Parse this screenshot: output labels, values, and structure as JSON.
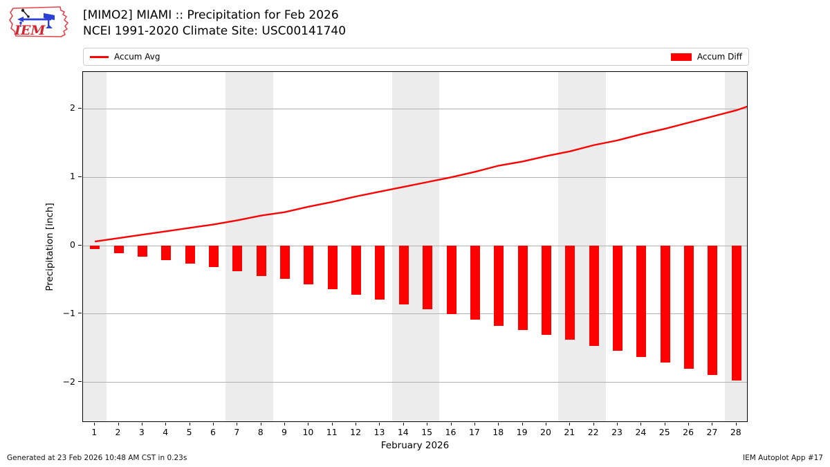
{
  "header": {
    "title_line1": "[MIMO2] MIAMI :: Precipitation for Feb 2026",
    "title_line2": "NCEI 1991-2020 Climate Site: USC00141740",
    "logo_text": "IEM"
  },
  "legend": {
    "items": [
      {
        "label": "Accum Avg",
        "type": "line",
        "color": "#ff0000"
      },
      {
        "label": "Accum Diff",
        "type": "bar",
        "color": "#ff0000"
      }
    ]
  },
  "footer": {
    "left": "Generated at 23 Feb 2026 10:48 AM CST in 0.23s",
    "right": "IEM Autoplot App #17"
  },
  "chart_data": {
    "type": "bar",
    "title": "[MIMO2] MIAMI :: Precipitation for Feb 2026",
    "subtitle": "NCEI 1991-2020 Climate Site: USC00141740",
    "xlabel": "February 2026",
    "ylabel": "Precipitation [inch]",
    "x": [
      1,
      2,
      3,
      4,
      5,
      6,
      7,
      8,
      9,
      10,
      11,
      12,
      13,
      14,
      15,
      16,
      17,
      18,
      19,
      20,
      21,
      22,
      23,
      24,
      25,
      26,
      27,
      28
    ],
    "series": [
      {
        "name": "Accum Avg",
        "type": "line",
        "color": "#ff0000",
        "values": [
          0.06,
          0.11,
          0.16,
          0.21,
          0.26,
          0.31,
          0.37,
          0.44,
          0.49,
          0.57,
          0.64,
          0.72,
          0.79,
          0.86,
          0.93,
          1.0,
          1.08,
          1.17,
          1.23,
          1.31,
          1.38,
          1.47,
          1.54,
          1.63,
          1.71,
          1.8,
          1.89,
          1.98
        ]
      },
      {
        "name": "Accum Diff",
        "type": "bar",
        "color": "#ff0000",
        "values": [
          -0.05,
          -0.11,
          -0.16,
          -0.21,
          -0.26,
          -0.31,
          -0.37,
          -0.44,
          -0.49,
          -0.57,
          -0.64,
          -0.72,
          -0.79,
          -0.86,
          -0.93,
          -1.0,
          -1.08,
          -1.17,
          -1.23,
          -1.31,
          -1.38,
          -1.47,
          -1.54,
          -1.63,
          -1.71,
          -1.8,
          -1.89,
          -1.97
        ]
      }
    ],
    "line_end_extension": {
      "x": 28.5,
      "value": 2.04
    },
    "xlim": [
      0.5,
      28.5
    ],
    "ylim": [
      -2.59,
      2.54
    ],
    "yticks": [
      -2,
      -1,
      0,
      1,
      2
    ],
    "weekend_bands": [
      [
        0.5,
        1.5
      ],
      [
        6.5,
        8.5
      ],
      [
        13.5,
        15.5
      ],
      [
        20.5,
        22.5
      ],
      [
        27.5,
        28.5
      ]
    ],
    "band_color": "#ececec",
    "grid_color": "#b0b0b0",
    "grid": true,
    "legend_position": "top"
  }
}
